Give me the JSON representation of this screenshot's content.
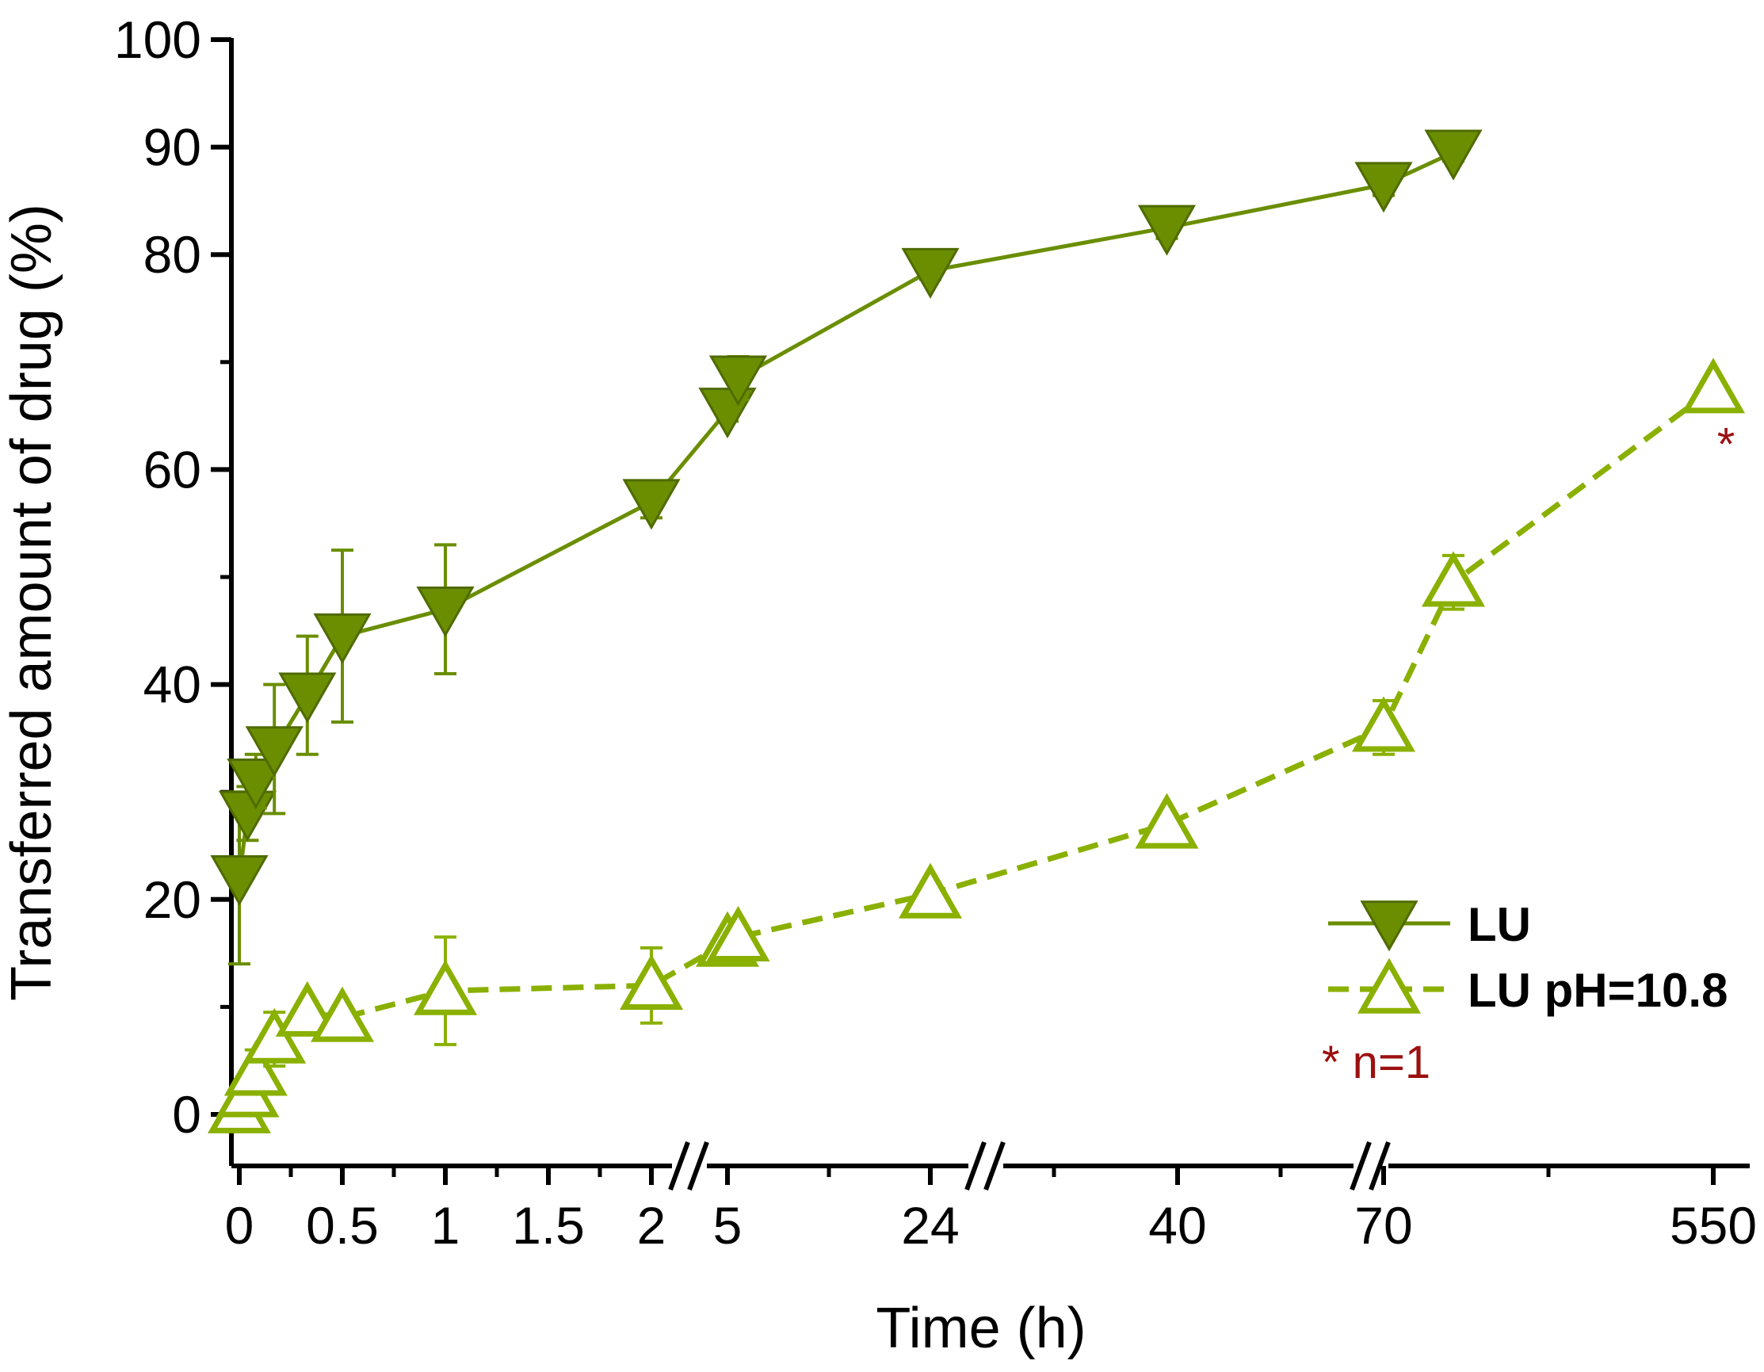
{
  "chart_data": {
    "type": "line",
    "xlabel": "Time (h)",
    "ylabel": "Transferred amount of drug (%)",
    "ylim": [
      0,
      100
    ],
    "yticks": [
      "0",
      "20",
      "40",
      "60",
      "80",
      "90",
      "100"
    ],
    "xticks": [
      "0",
      "0.5",
      "1",
      "1.5",
      "2",
      "5",
      "24",
      "40",
      "70",
      "550"
    ],
    "x_axis_breaks": "broken x-axis: segments 0–2 h, 5–24 h, 24–70 h, 70–550 h",
    "legend_position": "bottom-right",
    "colors": {
      "LU": "#6a8e00",
      "LU pH=10.8": "#8ab000",
      "note": "#9b1010",
      "axis": "#000000"
    },
    "series": [
      {
        "name": "LU",
        "marker": "filled-down-triangle",
        "line": "solid",
        "points": [
          {
            "x": 0.0,
            "y": 22,
            "err": 8
          },
          {
            "x": 0.04,
            "y": 28,
            "err": 2.5
          },
          {
            "x": 0.08,
            "y": 31,
            "err": 2.5
          },
          {
            "x": 0.17,
            "y": 34,
            "err": 6
          },
          {
            "x": 0.33,
            "y": 39,
            "err": 5.5
          },
          {
            "x": 0.5,
            "y": 44.5,
            "err": 8
          },
          {
            "x": 1.0,
            "y": 47,
            "err": 6
          },
          {
            "x": 2.0,
            "y": 57,
            "err": 1.5
          },
          {
            "x": 5.0,
            "y": 65.5,
            "err": 1
          },
          {
            "x": 6.0,
            "y": 68.5,
            "err": 2
          },
          {
            "x": 24.0,
            "y": 78.5,
            "err": 0.8
          },
          {
            "x": 48.0,
            "y": 82.5,
            "err": 1
          },
          {
            "x": 70.0,
            "y": 86.5,
            "err": 1
          },
          {
            "x": 80.0,
            "y": 89.5,
            "err": 0.8
          }
        ]
      },
      {
        "name": "LU pH=10.8",
        "marker": "open-up-triangle",
        "line": "dashed",
        "points": [
          {
            "x": 0.0,
            "y": 0.5,
            "err": 1
          },
          {
            "x": 0.04,
            "y": 2,
            "err": 1.5
          },
          {
            "x": 0.08,
            "y": 4,
            "err": 2
          },
          {
            "x": 0.17,
            "y": 7,
            "err": 2.5
          },
          {
            "x": 0.33,
            "y": 9.5,
            "err": 1
          },
          {
            "x": 0.5,
            "y": 9,
            "err": 1
          },
          {
            "x": 1.0,
            "y": 11.5,
            "err": 5
          },
          {
            "x": 2.0,
            "y": 12,
            "err": 3.5
          },
          {
            "x": 5.0,
            "y": 16,
            "err": 1
          },
          {
            "x": 6.0,
            "y": 16.5,
            "err": 1
          },
          {
            "x": 24.0,
            "y": 20.5,
            "err": 1
          },
          {
            "x": 48.0,
            "y": 27,
            "err": 1
          },
          {
            "x": 70.0,
            "y": 36,
            "err": 2.5
          },
          {
            "x": 80.0,
            "y": 49.5,
            "err": 2.5
          },
          {
            "x": 550.0,
            "y": 67.5,
            "err": 0
          }
        ]
      }
    ],
    "annotations": [
      {
        "text": "*",
        "at_series": "LU pH=10.8",
        "at_x": 550
      },
      {
        "text": "* n=1",
        "position": "below-legend"
      }
    ]
  }
}
